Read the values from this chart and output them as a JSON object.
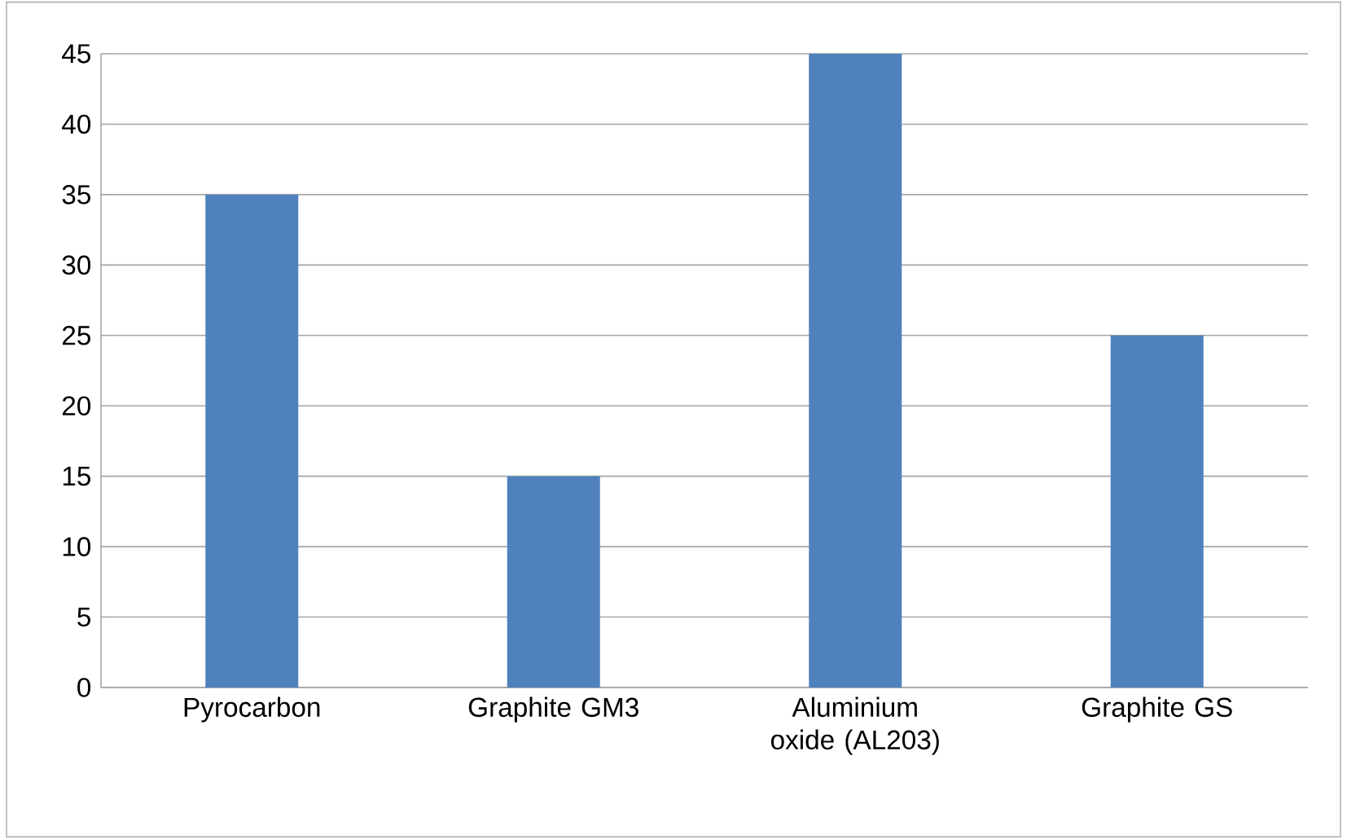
{
  "chart_data": {
    "type": "bar",
    "categories": [
      "Pyrocarbon",
      "Graphite GM3",
      "Aluminium oxide (AL203)",
      "Graphite GS"
    ],
    "values": [
      35,
      15,
      45,
      25
    ],
    "color": "#4f81bd",
    "ylim": [
      0,
      45
    ],
    "yticks": [
      0,
      5,
      10,
      15,
      20,
      25,
      30,
      35,
      40,
      45
    ],
    "grid": "y"
  }
}
